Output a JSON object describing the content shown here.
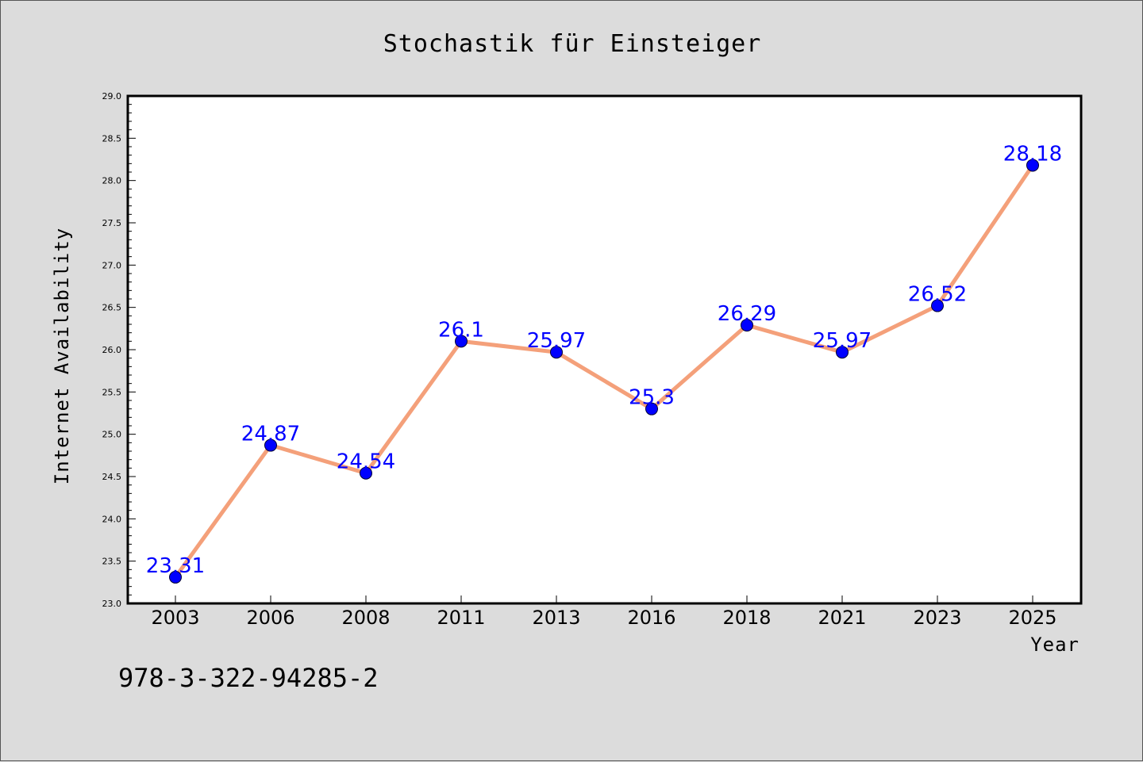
{
  "colors": {
    "background": "#dcdcdc",
    "plot_background": "#ffffff",
    "line": "#f4a07a",
    "marker": "#0000ff",
    "data_label": "#0000ff"
  },
  "isbn": "978-3-322-94285-2",
  "chart_data": {
    "type": "line",
    "title": "Stochastik für Einsteiger",
    "xlabel": "Year",
    "ylabel": "Internet Availability",
    "categories": [
      "2003",
      "2006",
      "2008",
      "2011",
      "2013",
      "2016",
      "2018",
      "2021",
      "2023",
      "2025"
    ],
    "series": [
      {
        "values": [
          23.31,
          24.87,
          24.54,
          26.1,
          25.97,
          25.3,
          26.29,
          25.97,
          26.52,
          28.18
        ],
        "labels": [
          "23.31",
          "24.87",
          "24.54",
          "26.1",
          "25.97",
          "25.3",
          "26.29",
          "25.97",
          "26.52",
          "28.18"
        ]
      }
    ],
    "ylim": [
      23.0,
      29.0
    ],
    "yticks": [
      "23.0",
      "23.5",
      "24.0",
      "24.5",
      "25.0",
      "25.5",
      "26.0",
      "26.5",
      "27.0",
      "27.5",
      "28.0",
      "28.5",
      "29.0"
    ],
    "grid": false,
    "legend": "none"
  }
}
